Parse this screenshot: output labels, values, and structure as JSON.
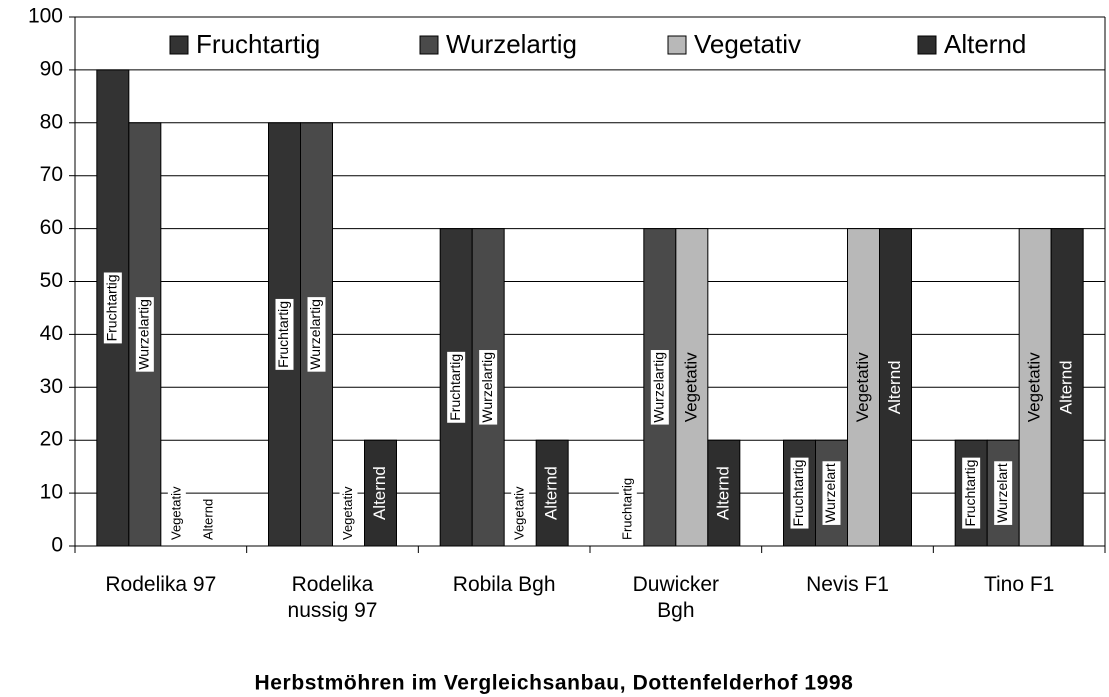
{
  "chart_data": {
    "type": "bar",
    "title": "Herbstmöhren im Vergleichsanbau, Dottenfelderhof 1998",
    "categories": [
      "Rodelika 97",
      "Rodelika nussig 97",
      "Robila Bgh",
      "Duwicker Bgh",
      "Nevis F1",
      "Tino F1"
    ],
    "series": [
      {
        "name": "Fruchtartig",
        "color": "#333333",
        "values": [
          90,
          80,
          60,
          0,
          20,
          20
        ],
        "value_labels": [
          "Fruchtartig",
          "Fruchtartig",
          "Fruchtartig",
          "Fruchtartig",
          "Fruchtartig",
          "Fruchtartig"
        ]
      },
      {
        "name": "Wurzelartig",
        "color": "#4a4a4a",
        "values": [
          80,
          80,
          60,
          60,
          20,
          20
        ],
        "value_labels": [
          "Wurzelartig",
          "Wurzelartig",
          "Wurzelartig",
          "Wurzelartig",
          "Wurzelart",
          "Wurzelart"
        ]
      },
      {
        "name": "Vegetativ",
        "color": "#b8b8b8",
        "values": [
          0,
          0,
          0,
          60,
          60,
          60
        ],
        "value_labels": [
          "Vegetativ",
          "Vegetativ",
          "Vegetativ",
          "Vegetativ",
          "Vegetativ",
          "Vegetativ"
        ]
      },
      {
        "name": "Alternd",
        "color": "#2e2e2e",
        "values": [
          0,
          20,
          20,
          20,
          60,
          60
        ],
        "value_labels": [
          "Alternd",
          "Alternd",
          "Alternd",
          "Alternd",
          "Alternd",
          "Alternd"
        ]
      }
    ],
    "ylim": [
      0,
      100
    ],
    "yticks": [
      0,
      10,
      20,
      30,
      40,
      50,
      60,
      70,
      80,
      90,
      100
    ],
    "grid": true,
    "legend": "top"
  }
}
